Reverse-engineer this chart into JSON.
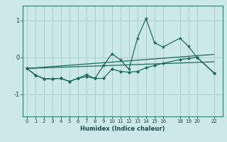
{
  "xlabel": "Humidex (Indice chaleur)",
  "bg_color": "#cce8e8",
  "grid_color": "#aad4d4",
  "line_color": "#1a6b5a",
  "x_ticks": [
    0,
    1,
    2,
    3,
    4,
    5,
    6,
    7,
    8,
    9,
    10,
    11,
    12,
    13,
    14,
    15,
    16,
    18,
    19,
    20,
    22
  ],
  "xlim": [
    -0.5,
    23.0
  ],
  "ylim": [
    -1.6,
    1.4
  ],
  "y_ticks": [
    -1,
    0
  ],
  "y_top_label": "1",
  "series1_x": [
    0,
    1,
    2,
    3,
    4,
    5,
    6,
    7,
    8,
    9,
    10,
    11,
    12,
    13,
    14,
    15,
    16,
    18,
    19,
    20,
    22
  ],
  "series1_y": [
    -0.3,
    -0.48,
    -0.58,
    -0.58,
    -0.57,
    -0.65,
    -0.57,
    -0.52,
    -0.57,
    -0.57,
    -0.32,
    -0.38,
    -0.4,
    -0.38,
    -0.28,
    -0.22,
    -0.16,
    -0.06,
    -0.03,
    0.0,
    -0.42
  ],
  "series2_x": [
    0,
    1,
    2,
    3,
    4,
    5,
    6,
    7,
    8,
    9,
    10,
    11,
    12,
    13,
    14,
    15,
    16,
    18,
    19,
    20,
    22
  ],
  "series2_y": [
    -0.3,
    -0.48,
    -0.58,
    -0.58,
    -0.57,
    -0.65,
    -0.57,
    -0.47,
    -0.57,
    -0.22,
    0.1,
    -0.07,
    -0.32,
    0.52,
    1.05,
    0.4,
    0.28,
    0.52,
    0.3,
    0.0,
    -0.42
  ],
  "line1_x": [
    0,
    22
  ],
  "line1_y": [
    -0.3,
    -0.12
  ],
  "line2_x": [
    0,
    22
  ],
  "line2_y": [
    -0.3,
    0.08
  ]
}
